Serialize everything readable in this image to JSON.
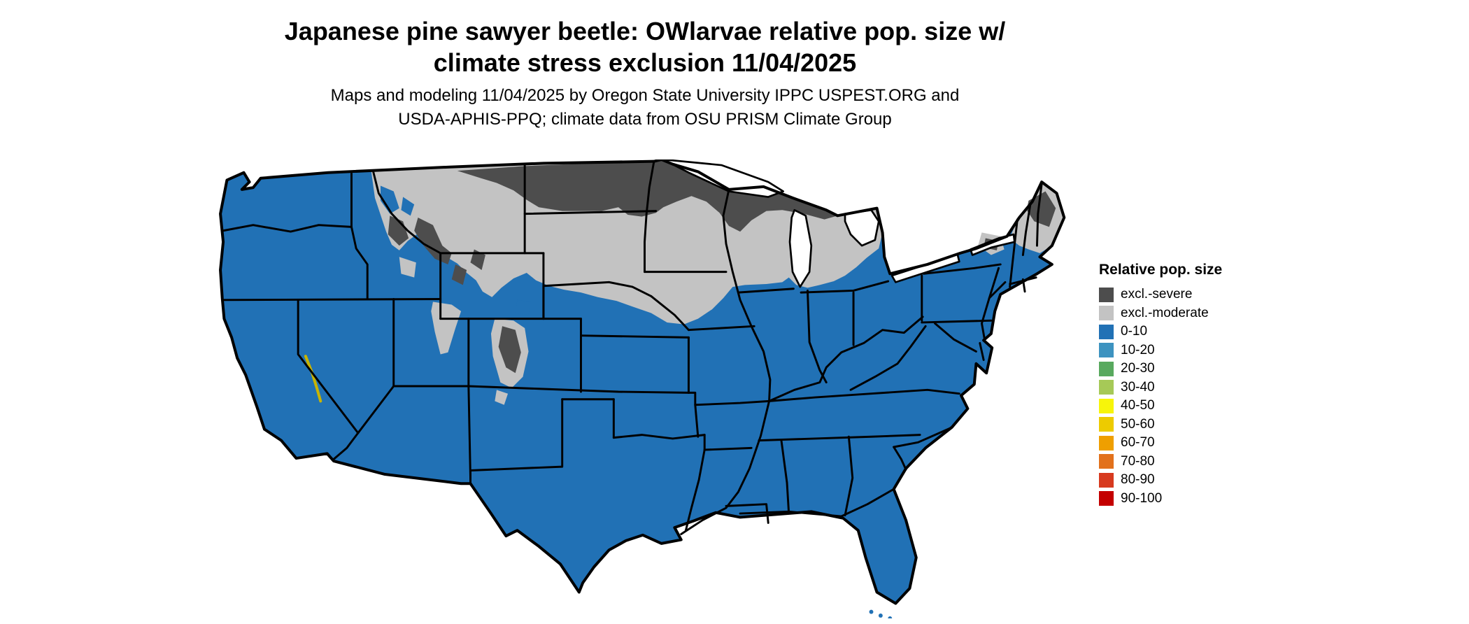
{
  "title": {
    "line1": "Japanese pine sawyer beetle: OWlarvae relative pop. size w/",
    "line2": "climate stress exclusion 11/04/2025"
  },
  "subtitle": {
    "line1": "Maps and modeling 11/04/2025 by Oregon State University IPPC USPEST.ORG and",
    "line2": "USDA-APHIS-PPQ; climate data from OSU PRISM Climate Group"
  },
  "legend": {
    "title": "Relative pop. size",
    "items": [
      {
        "label": "excl.-severe",
        "color": "#4d4d4d"
      },
      {
        "label": "excl.-moderate",
        "color": "#c3c3c3"
      },
      {
        "label": "0-10",
        "color": "#2171b5"
      },
      {
        "label": "10-20",
        "color": "#3d93c0"
      },
      {
        "label": "20-30",
        "color": "#58a95e"
      },
      {
        "label": "30-40",
        "color": "#a6c957"
      },
      {
        "label": "40-50",
        "color": "#f7f50a"
      },
      {
        "label": "50-60",
        "color": "#edcb00"
      },
      {
        "label": "60-70",
        "color": "#ef9f00"
      },
      {
        "label": "70-80",
        "color": "#e2711b"
      },
      {
        "label": "80-90",
        "color": "#d73a1f"
      },
      {
        "label": "90-100",
        "color": "#c40000"
      }
    ]
  },
  "map": {
    "base_color": "#2171b5",
    "excl_moderate_color": "#c3c3c3",
    "excl_severe_color": "#4d4d4d",
    "water_color": "#ffffff",
    "border_color": "#000000",
    "highlight_streak_color": "#c8b400"
  }
}
